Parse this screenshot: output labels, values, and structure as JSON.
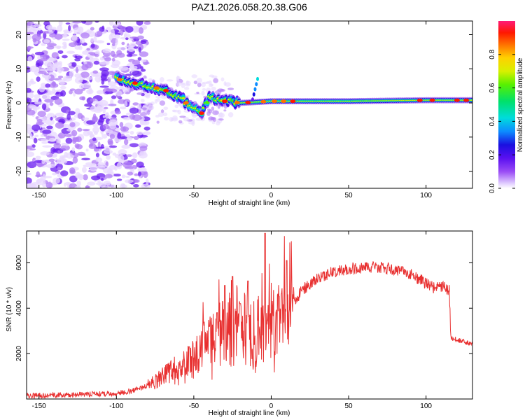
{
  "title": "PAZ1.2026.058.20.38.G06",
  "chart_data": [
    {
      "type": "heatmap",
      "title": "PAZ1.2026.058.20.38.G06",
      "xlabel": "Height of straight line (km)",
      "ylabel": "Frequency (Hz)",
      "xlim": [
        -158,
        130
      ],
      "ylim": [
        -25,
        24
      ],
      "x_ticks": [
        -150,
        -100,
        -50,
        0,
        50,
        100
      ],
      "y_ticks": [
        -20,
        -10,
        0,
        10,
        20
      ],
      "colorbar": {
        "label": "Normalized spectral amplitude",
        "range": [
          0,
          1
        ],
        "ticks": [
          0.0,
          0.2,
          0.4,
          0.6,
          0.8
        ],
        "colormap": "rainbow (white-violet-blue-cyan-green-yellow-orange-red-magenta)",
        "colors": [
          "#ffffff",
          "#e8d8ff",
          "#b07cf5",
          "#6a1cf0",
          "#1a10e0",
          "#0c8cff",
          "#00dcdc",
          "#00e06a",
          "#58f000",
          "#d8f000",
          "#ffd000",
          "#ff7000",
          "#ff1800",
          "#ff1a78"
        ]
      },
      "tone_track_hz": [
        {
          "height_km": -100,
          "freq_hz": 7.0
        },
        {
          "height_km": -90,
          "freq_hz": 6.0
        },
        {
          "height_km": -80,
          "freq_hz": 5.0
        },
        {
          "height_km": -70,
          "freq_hz": 4.0
        },
        {
          "height_km": -60,
          "freq_hz": 2.0
        },
        {
          "height_km": -50,
          "freq_hz": -2.0
        },
        {
          "height_km": -45,
          "freq_hz": -3.0
        },
        {
          "height_km": -40,
          "freq_hz": 1.5
        },
        {
          "height_km": -30,
          "freq_hz": 0.5
        },
        {
          "height_km": -20,
          "freq_hz": 0.0
        },
        {
          "height_km": 0,
          "freq_hz": 0.5
        },
        {
          "height_km": 50,
          "freq_hz": 0.5
        },
        {
          "height_km": 100,
          "freq_hz": 0.8
        },
        {
          "height_km": 130,
          "freq_hz": 0.8
        }
      ]
    },
    {
      "type": "line",
      "xlabel": "Height of straight line (km)",
      "ylabel": "SNR (10 * v/v)",
      "xlim": [
        -158,
        130
      ],
      "ylim": [
        0,
        7400
      ],
      "x_ticks": [
        -150,
        -100,
        -50,
        0,
        50,
        100
      ],
      "y_ticks": [
        2000,
        4000,
        6000
      ],
      "color": "#e83030",
      "series": [
        {
          "name": "SNR",
          "x": [
            -158,
            -140,
            -120,
            -100,
            -90,
            -80,
            -75,
            -70,
            -65,
            -60,
            -55,
            -50,
            -45,
            -40,
            -35,
            -30,
            -25,
            -20,
            -15,
            -10,
            -5,
            0,
            5,
            10,
            15,
            20,
            30,
            40,
            50,
            60,
            70,
            80,
            90,
            100,
            105,
            110,
            115,
            116,
            120,
            125,
            130
          ],
          "y": [
            150,
            170,
            200,
            250,
            350,
            600,
            800,
            1000,
            1200,
            1300,
            1500,
            1700,
            2200,
            2500,
            2800,
            3000,
            3000,
            2900,
            2700,
            2800,
            3000,
            3100,
            3400,
            3700,
            4300,
            4800,
            5300,
            5600,
            5750,
            5800,
            5800,
            5700,
            5500,
            5100,
            4900,
            4950,
            4800,
            2700,
            2600,
            2500,
            2400
          ]
        }
      ],
      "spikes": [
        {
          "x": -53,
          "y": 2300
        },
        {
          "x": -40,
          "y": 3200
        },
        {
          "x": -35,
          "y": 3800
        },
        {
          "x": -30,
          "y": 5000
        },
        {
          "x": -25,
          "y": 5400
        },
        {
          "x": -20,
          "y": 4200
        },
        {
          "x": -15,
          "y": 5200
        },
        {
          "x": -4,
          "y": 7300
        },
        {
          "x": 10,
          "y": 6100
        }
      ]
    }
  ]
}
